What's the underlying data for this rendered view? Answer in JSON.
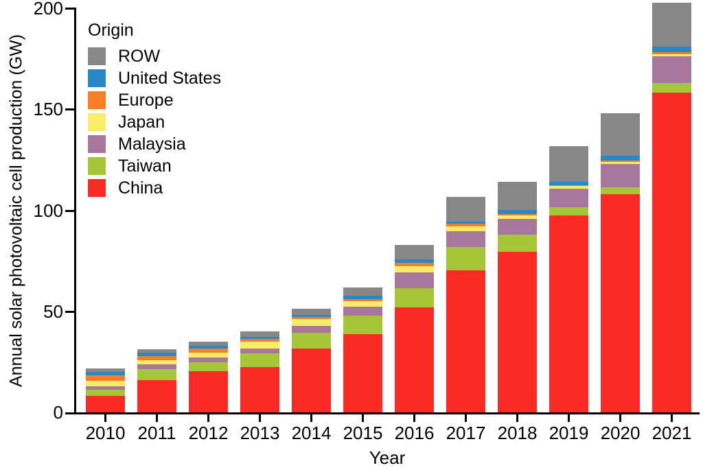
{
  "figure": {
    "background": "#ffffff",
    "axis_color": "#000000"
  },
  "chart_data": {
    "type": "bar",
    "stacked": true,
    "title": "",
    "xlabel": "Year",
    "ylabel": "Annual solar photovoltaic cell production (GW)",
    "categories": [
      "2010",
      "2011",
      "2012",
      "2013",
      "2014",
      "2015",
      "2016",
      "2017",
      "2018",
      "2019",
      "2020",
      "2021"
    ],
    "ylim": [
      0,
      200
    ],
    "yticks": [
      "0",
      "50",
      "100",
      "150",
      "200"
    ],
    "grid": false,
    "legend_position": "upper-left-inside",
    "legend_title": "Origin",
    "legend_order_top_to_bottom": [
      "ROW",
      "United States",
      "Europe",
      "Japan",
      "Malaysia",
      "Taiwan",
      "China"
    ],
    "series": [
      {
        "name": "China",
        "color": "#fb2a24",
        "values": [
          8.3,
          16.0,
          20.3,
          22.4,
          31.7,
          38.8,
          52.0,
          70.4,
          79.4,
          97.5,
          107.9,
          158.4
        ]
      },
      {
        "name": "Taiwan",
        "color": "#a5c637",
        "values": [
          2.8,
          5.3,
          4.5,
          6.8,
          7.7,
          9.0,
          9.4,
          11.5,
          8.5,
          4.0,
          3.5,
          4.5
        ]
      },
      {
        "name": "Malaysia",
        "color": "#a9779b",
        "values": [
          1.9,
          2.6,
          2.3,
          2.5,
          3.4,
          4.5,
          7.9,
          7.7,
          7.7,
          9.2,
          11.5,
          13.5
        ]
      },
      {
        "name": "Japan",
        "color": "#f9ed67",
        "values": [
          2.7,
          1.9,
          2.5,
          3.4,
          3.4,
          2.8,
          3.0,
          2.3,
          2.0,
          1.4,
          1.1,
          0.8
        ]
      },
      {
        "name": "Europe",
        "color": "#fb7d26",
        "values": [
          2.8,
          1.9,
          2.0,
          1.1,
          0.9,
          1.1,
          1.7,
          1.4,
          0.7,
          0.4,
          0.5,
          1.1
        ]
      },
      {
        "name": "United States",
        "color": "#2688c6",
        "values": [
          1.7,
          1.8,
          1.4,
          1.1,
          1.0,
          1.4,
          1.8,
          1.1,
          1.8,
          1.7,
          2.5,
          2.6
        ]
      },
      {
        "name": "ROW",
        "color": "#878787",
        "values": [
          1.5,
          1.6,
          2.0,
          2.9,
          3.2,
          4.1,
          7.0,
          12.2,
          14.0,
          17.5,
          21.2,
          22.0
        ]
      }
    ]
  }
}
